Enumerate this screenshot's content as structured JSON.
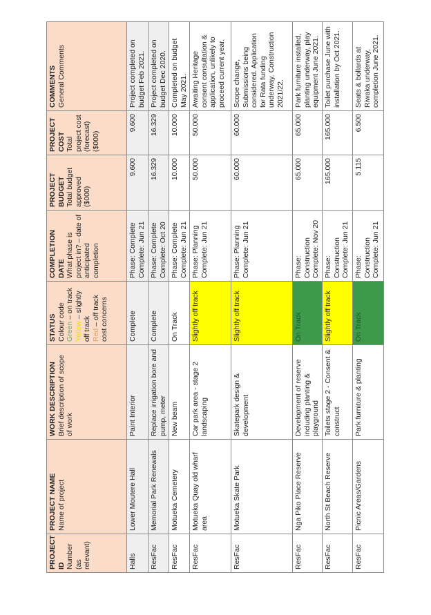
{
  "headers": {
    "id": {
      "title": "PROJECT ID",
      "sub": "Number (as relevant)"
    },
    "name": {
      "title": "PROJECT NAME",
      "sub": "Name of project"
    },
    "work": {
      "title": "WORK DESCRIPTION",
      "sub": "Brief description of scope of work"
    },
    "status": {
      "title": "STATUS",
      "sub": "Colour code",
      "green": "Green",
      "green_text": " – on track",
      "yellow": "Yellow",
      "yellow_text": " – slightly off track",
      "red": "Red",
      "red_text": " – off track cost concerns"
    },
    "completion": {
      "title": "COMPLETION DATE",
      "sub": "What phase is project in? – date of anticipated completion"
    },
    "budget": {
      "title": "PROJECT BUDGET",
      "sub": "Total budget approved ($000)"
    },
    "cost": {
      "title": "PROJECT COST",
      "sub": "Total project cost (forecast) ($000)"
    },
    "comments": {
      "title": "COMMENTS",
      "sub": "General Comments"
    }
  },
  "status_colors": {
    "on_track": "#3d9a4a",
    "slightly_off_track": "#ffff00"
  },
  "rows": [
    {
      "id": "Halls",
      "name": "Lower Moutere Hall",
      "work": "Paint Interior",
      "status": "Complete",
      "phase": "Phase: Complete",
      "complete": "Complete: Jun 21",
      "budget": "9.600",
      "cost": "9.600",
      "comments": "Project completed on budget Feb 2021."
    },
    {
      "id": "ResFac",
      "name": "Memorial Park Renewals",
      "work": "Replace irrigation bore and pump, meter",
      "status": "Complete",
      "phase": "Phase: Complete",
      "complete": "Complete: Oct 20",
      "budget": "16.329",
      "cost": "16.329",
      "comments": "Project completed on budget Dec 2020."
    },
    {
      "id": "ResFac",
      "name": "Motueka Cemetery",
      "work": "New beam",
      "status": "On Track",
      "phase": "Phase: Complete",
      "complete": "Complete: Jun 21",
      "budget": "10.000",
      "cost": "10.000",
      "comments": "Completed on budget May 2021."
    },
    {
      "id": "ResFac",
      "name": "Motueka Quay old wharf area",
      "work": "Car park area - stage 2 landscaping",
      "status": "Slightly off track",
      "phase": "Phase: Planning",
      "complete": "Complete: Jun 21",
      "budget": "50.000",
      "cost": "50.000",
      "comments": "Awaiting Heritage consent consultation & application, unlikely to proceed current year."
    },
    {
      "id": "ResFac",
      "name": "Motueka Skate Park",
      "work": "Skatepark design & development",
      "status": "Slightly off track",
      "phase": "Phase: Planning",
      "complete": "Complete: Jun 21",
      "budget": "60.000",
      "cost": "60.000",
      "comments": "Scope change, Submissions being considered. Application for Rata funding underway. Construction 2021/22."
    },
    {
      "id": "ResFac",
      "name": "Nga Piko Place Reserve",
      "work": "Development of reserve including planting & playground",
      "status": "On Track",
      "phase": "Phase: Construction",
      "complete": "Complete: Nov 20",
      "budget": "65.000",
      "cost": "65.000",
      "comments": "Park furniture installed, planting underway, play equipment June 2021."
    },
    {
      "id": "ResFac",
      "name": "North St Beach Reserve",
      "work": "Toilets stage 2 - Consent & construct",
      "status": "Slightly off track",
      "phase": "Phase: Construction",
      "complete": "Complete: Jun 21",
      "budget": "165.000",
      "cost": "165.000",
      "comments": "Toilet purchase June with installation by Oct 2021."
    },
    {
      "id": "ResFac",
      "name": "Picnic Areas/Gardens",
      "work": "Park furniture & planting",
      "status": "On Track",
      "phase": "Phase: Construction",
      "complete": "Complete: Jun 21",
      "budget": "5.115",
      "cost": "6.500",
      "comments": "Seats & bollards at Riwaka underway, completion June 2021."
    }
  ]
}
